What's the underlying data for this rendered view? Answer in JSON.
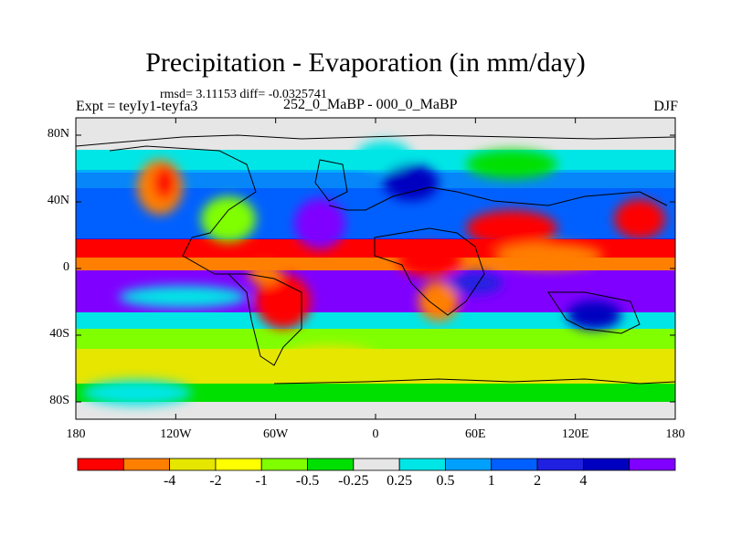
{
  "title": "Precipitation - Evaporation (in mm/day)",
  "stats": "rmsd= 3.11153 diff= -0.0325741",
  "expt": "Expt = teyIy1-teyfa3",
  "comparison": "252_0_MaBP - 000_0_MaBP",
  "season": "DJF",
  "lat_labels": [
    "80N",
    "40N",
    "0",
    "40S",
    "80S"
  ],
  "lon_labels": [
    "180",
    "120W",
    "60W",
    "0",
    "60E",
    "120E",
    "180"
  ],
  "colorbar": {
    "colors": [
      "#ff0000",
      "#ff7f00",
      "#e6e600",
      "#ffff00",
      "#80ff00",
      "#00e000",
      "#e6e6e6",
      "#00e6e6",
      "#00a0ff",
      "#0060ff",
      "#2020e0",
      "#0000c0",
      "#8000ff"
    ],
    "labels": [
      "-4",
      "-2",
      "-1",
      "-0.5",
      "-0.25",
      "0.25",
      "0.5",
      "1",
      "2",
      "4"
    ]
  }
}
